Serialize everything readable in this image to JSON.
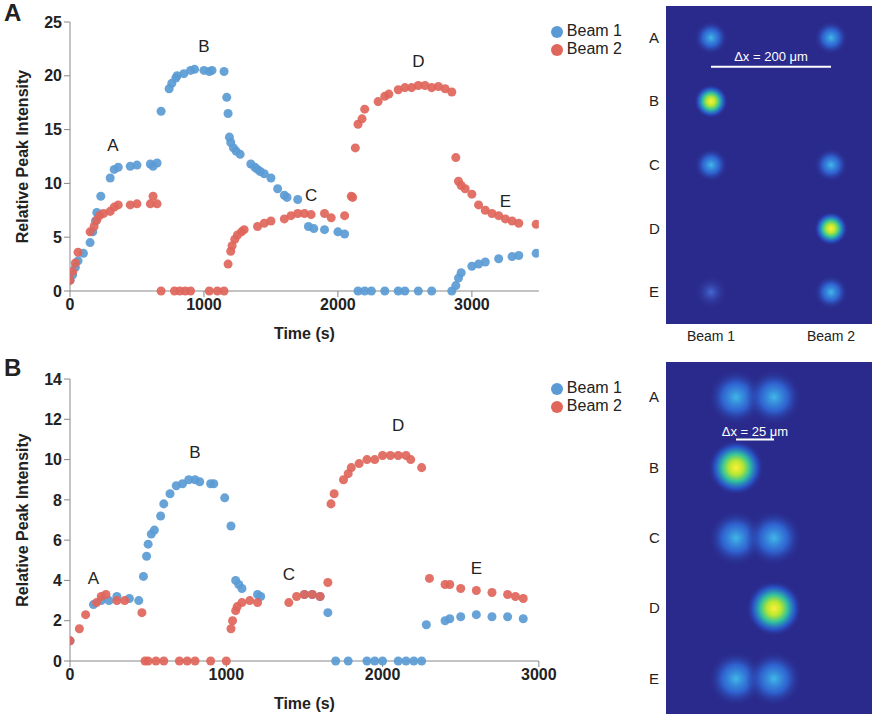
{
  "chart_data": [
    {
      "panel": "A",
      "type": "scatter",
      "x_label": "Time (s)",
      "y_label": "Relative Peak Intensity",
      "xlim": [
        0,
        3500
      ],
      "xticks": [
        0,
        1000,
        2000,
        3000
      ],
      "ylim": [
        0,
        25
      ],
      "yticks": [
        0,
        5,
        10,
        15,
        20,
        25
      ],
      "grid": false,
      "legend": "right",
      "marker": "circle",
      "series": [
        {
          "name": "Beam 1",
          "color": "#5b9bd5",
          "x": [
            0,
            20,
            40,
            60,
            100,
            150,
            170,
            190,
            200,
            230,
            300,
            330,
            360,
            450,
            500,
            600,
            620,
            650,
            680,
            740,
            760,
            790,
            800,
            850,
            900,
            930,
            1000,
            1040,
            1060,
            1150,
            1170,
            1180,
            1190,
            1200,
            1220,
            1240,
            1270,
            1350,
            1380,
            1400,
            1420,
            1450,
            1500,
            1550,
            1600,
            1620,
            1700,
            1780,
            1820,
            1900,
            2000,
            2050,
            2150,
            2200,
            2250,
            2350,
            2450,
            2500,
            2600,
            2700,
            2850,
            2880,
            2900,
            2920,
            3000,
            3050,
            3100,
            3200,
            3300,
            3350,
            3480
          ],
          "values": [
            1,
            1.5,
            2.2,
            2.8,
            3.5,
            4.5,
            5.5,
            6.5,
            7.3,
            8.8,
            10.5,
            11.3,
            11.5,
            11.6,
            11.7,
            11.8,
            11.6,
            11.9,
            16.7,
            18.8,
            19.3,
            19.8,
            20,
            20.2,
            20.5,
            20.6,
            20.5,
            20.4,
            20.5,
            20.4,
            18,
            16.5,
            14.3,
            13.8,
            13.3,
            13,
            12.7,
            11.8,
            11.5,
            11.3,
            11.1,
            10.9,
            10.5,
            9.5,
            8.9,
            8.7,
            8.5,
            6.0,
            5.8,
            5.7,
            5.5,
            5.3,
            0,
            0,
            0,
            0,
            0,
            0,
            0,
            0,
            0,
            0.5,
            1.2,
            1.7,
            2.3,
            2.5,
            2.7,
            3.0,
            3.2,
            3.3,
            3.5
          ]
        },
        {
          "name": "Beam 2",
          "color": "#e0655b",
          "x": [
            0,
            20,
            40,
            60,
            150,
            180,
            200,
            220,
            250,
            300,
            330,
            360,
            450,
            500,
            600,
            620,
            650,
            680,
            780,
            820,
            860,
            900,
            1040,
            1100,
            1150,
            1180,
            1200,
            1210,
            1230,
            1250,
            1280,
            1300,
            1400,
            1450,
            1500,
            1600,
            1650,
            1700,
            1750,
            1800,
            1900,
            1950,
            2050,
            2100,
            2110,
            2130,
            2150,
            2180,
            2200,
            2300,
            2350,
            2380,
            2450,
            2500,
            2550,
            2600,
            2650,
            2700,
            2750,
            2800,
            2850,
            2880,
            2900,
            2920,
            2950,
            3000,
            3050,
            3100,
            3150,
            3200,
            3250,
            3300,
            3350,
            3480
          ],
          "values": [
            1,
            1.8,
            2.6,
            3.6,
            5.5,
            6.0,
            6.6,
            7.0,
            7.2,
            7.4,
            7.8,
            8.0,
            8.0,
            8.1,
            8.1,
            8.8,
            8.1,
            0,
            0,
            0,
            0,
            0,
            0,
            0,
            0,
            2.5,
            3.7,
            4.2,
            4.8,
            5.2,
            5.5,
            5.7,
            6.0,
            6.3,
            6.5,
            6.7,
            7.0,
            7.2,
            7.2,
            7.1,
            7.2,
            6.8,
            7.0,
            8.8,
            8.7,
            13.3,
            15.5,
            16,
            16.9,
            17.6,
            18.1,
            18.3,
            18.7,
            18.9,
            18.9,
            19.1,
            19.1,
            18.9,
            19.0,
            18.8,
            18.5,
            12.4,
            10.2,
            9.8,
            9.5,
            9.0,
            8.0,
            7.5,
            7.2,
            7.0,
            6.7,
            6.5,
            6.3,
            6.2
          ]
        }
      ],
      "annotations": [
        {
          "text": "A",
          "x": 320,
          "y": 13.6
        },
        {
          "text": "B",
          "x": 1000,
          "y": 22.8
        },
        {
          "text": "C",
          "x": 1800,
          "y": 8.9
        },
        {
          "text": "D",
          "x": 2600,
          "y": 21.4
        },
        {
          "text": "E",
          "x": 3250,
          "y": 8.4
        }
      ],
      "beam_images": {
        "row_labels": [
          "A",
          "B",
          "C",
          "D",
          "E"
        ],
        "scale_label": "Δx = 200 μm",
        "column_labels": [
          "Beam 1",
          "Beam 2"
        ]
      }
    },
    {
      "panel": "B",
      "type": "scatter",
      "x_label": "Time (s)",
      "y_label": "Relative Peak Intensity",
      "xlim": [
        0,
        3000
      ],
      "xticks": [
        0,
        1000,
        2000,
        3000
      ],
      "ylim": [
        0,
        14
      ],
      "yticks": [
        0,
        2,
        4,
        6,
        8,
        10,
        12,
        14
      ],
      "grid": false,
      "legend": "right",
      "marker": "circle",
      "series": [
        {
          "name": "Beam 1",
          "color": "#5b9bd5",
          "x": [
            0,
            150,
            200,
            250,
            300,
            380,
            440,
            470,
            490,
            500,
            520,
            540,
            580,
            600,
            640,
            680,
            720,
            760,
            800,
            830,
            900,
            920,
            990,
            1030,
            1060,
            1080,
            1100,
            1200,
            1220,
            1500,
            1550,
            1600,
            1650,
            1700,
            1780,
            1900,
            1950,
            2000,
            2100,
            2150,
            2200,
            2250,
            2280,
            2400,
            2430,
            2500,
            2600,
            2700,
            2800,
            2900
          ],
          "values": [
            1,
            2.8,
            3.0,
            3.0,
            3.2,
            3.1,
            3.0,
            4.2,
            5.2,
            5.8,
            6.3,
            6.5,
            7.2,
            7.8,
            8.3,
            8.7,
            8.8,
            9.0,
            9.0,
            8.9,
            8.8,
            8.8,
            8.1,
            6.7,
            4.0,
            3.8,
            3.6,
            3.3,
            3.2,
            3.3,
            3.3,
            3.2,
            2.4,
            0,
            0,
            0,
            0,
            0,
            0,
            0,
            0,
            0,
            1.8,
            2.0,
            2.1,
            2.2,
            2.3,
            2.2,
            2.2,
            2.1
          ]
        },
        {
          "name": "Beam 2",
          "color": "#e0655b",
          "x": [
            0,
            60,
            100,
            170,
            200,
            230,
            300,
            350,
            460,
            480,
            500,
            550,
            600,
            700,
            750,
            800,
            900,
            1000,
            1030,
            1040,
            1060,
            1070,
            1100,
            1150,
            1200,
            1400,
            1450,
            1500,
            1550,
            1600,
            1650,
            1670,
            1690,
            1750,
            1780,
            1800,
            1850,
            1900,
            1950,
            2000,
            2050,
            2100,
            2150,
            2180,
            2250,
            2300,
            2400,
            2430,
            2500,
            2600,
            2700,
            2800,
            2850,
            2900
          ],
          "values": [
            1,
            1.6,
            2.3,
            2.9,
            3.2,
            3.3,
            3.0,
            3.0,
            2.4,
            0,
            0,
            0,
            0,
            0,
            0,
            0,
            0,
            0,
            1.6,
            2.0,
            2.5,
            2.7,
            2.9,
            3.0,
            2.9,
            2.9,
            3.2,
            3.3,
            3.3,
            3.2,
            3.9,
            7.8,
            8.3,
            9.0,
            9.3,
            9.6,
            9.8,
            10.0,
            10.0,
            10.2,
            10.2,
            10.2,
            10.2,
            10.0,
            9.6,
            4.1,
            3.8,
            3.8,
            3.6,
            3.5,
            3.4,
            3.3,
            3.2,
            3.1
          ]
        }
      ],
      "annotations": [
        {
          "text": "A",
          "x": 150,
          "y": 4.1
        },
        {
          "text": "B",
          "x": 800,
          "y": 10.4
        },
        {
          "text": "C",
          "x": 1400,
          "y": 4.3
        },
        {
          "text": "D",
          "x": 2100,
          "y": 11.7
        },
        {
          "text": "E",
          "x": 2600,
          "y": 4.6
        }
      ],
      "beam_images": {
        "row_labels": [
          "A",
          "B",
          "C",
          "D",
          "E"
        ],
        "scale_label": "Δx = 25 μm"
      }
    }
  ]
}
